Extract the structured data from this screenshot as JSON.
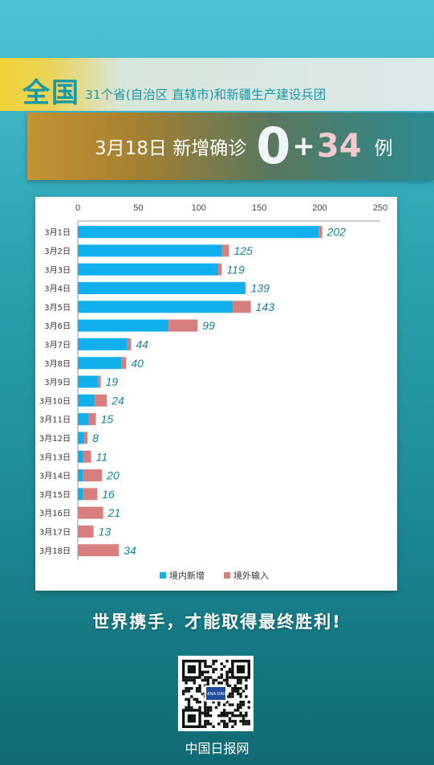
{
  "header": {
    "scope_big": "全国",
    "scope_small": "31个省(自治区 直辖市)和新疆生产建设兵团",
    "date_text": "3月18日 新增确诊",
    "local_count": "0",
    "plus": "+",
    "imported_count": "34",
    "unit": "例"
  },
  "chart_data": {
    "type": "bar",
    "orientation": "horizontal",
    "stacked": true,
    "categories": [
      "3月1日",
      "3月2日",
      "3月3日",
      "3月4日",
      "3月5日",
      "3月6日",
      "3月7日",
      "3月8日",
      "3月9日",
      "3月10日",
      "3月11日",
      "3月12日",
      "3月13日",
      "3月14日",
      "3月15日",
      "3月16日",
      "3月17日",
      "3月18日"
    ],
    "series": [
      {
        "name": "境内新增",
        "color": "#0fb0ec",
        "values": [
          199,
          119,
          116,
          138,
          128,
          75,
          41,
          36,
          17,
          14,
          9,
          5,
          4,
          4,
          4,
          0,
          0,
          0
        ]
      },
      {
        "name": "境外输入",
        "color": "#d77f7f",
        "values": [
          3,
          6,
          3,
          1,
          15,
          24,
          3,
          4,
          2,
          10,
          6,
          3,
          7,
          16,
          12,
          21,
          13,
          34
        ]
      }
    ],
    "totals": [
      202,
      125,
      119,
      139,
      143,
      99,
      44,
      40,
      19,
      24,
      15,
      8,
      11,
      20,
      16,
      21,
      13,
      34
    ],
    "xlim": [
      0,
      250
    ],
    "xticks": [
      0,
      50,
      100,
      150,
      200,
      250
    ],
    "axis_position": "top",
    "legend": "bottom",
    "grid": false
  },
  "footer": {
    "slogan": "世界携手，才能取得最终胜利!",
    "qr_label": "CHINA DAILY",
    "brand": "中国日报网"
  }
}
